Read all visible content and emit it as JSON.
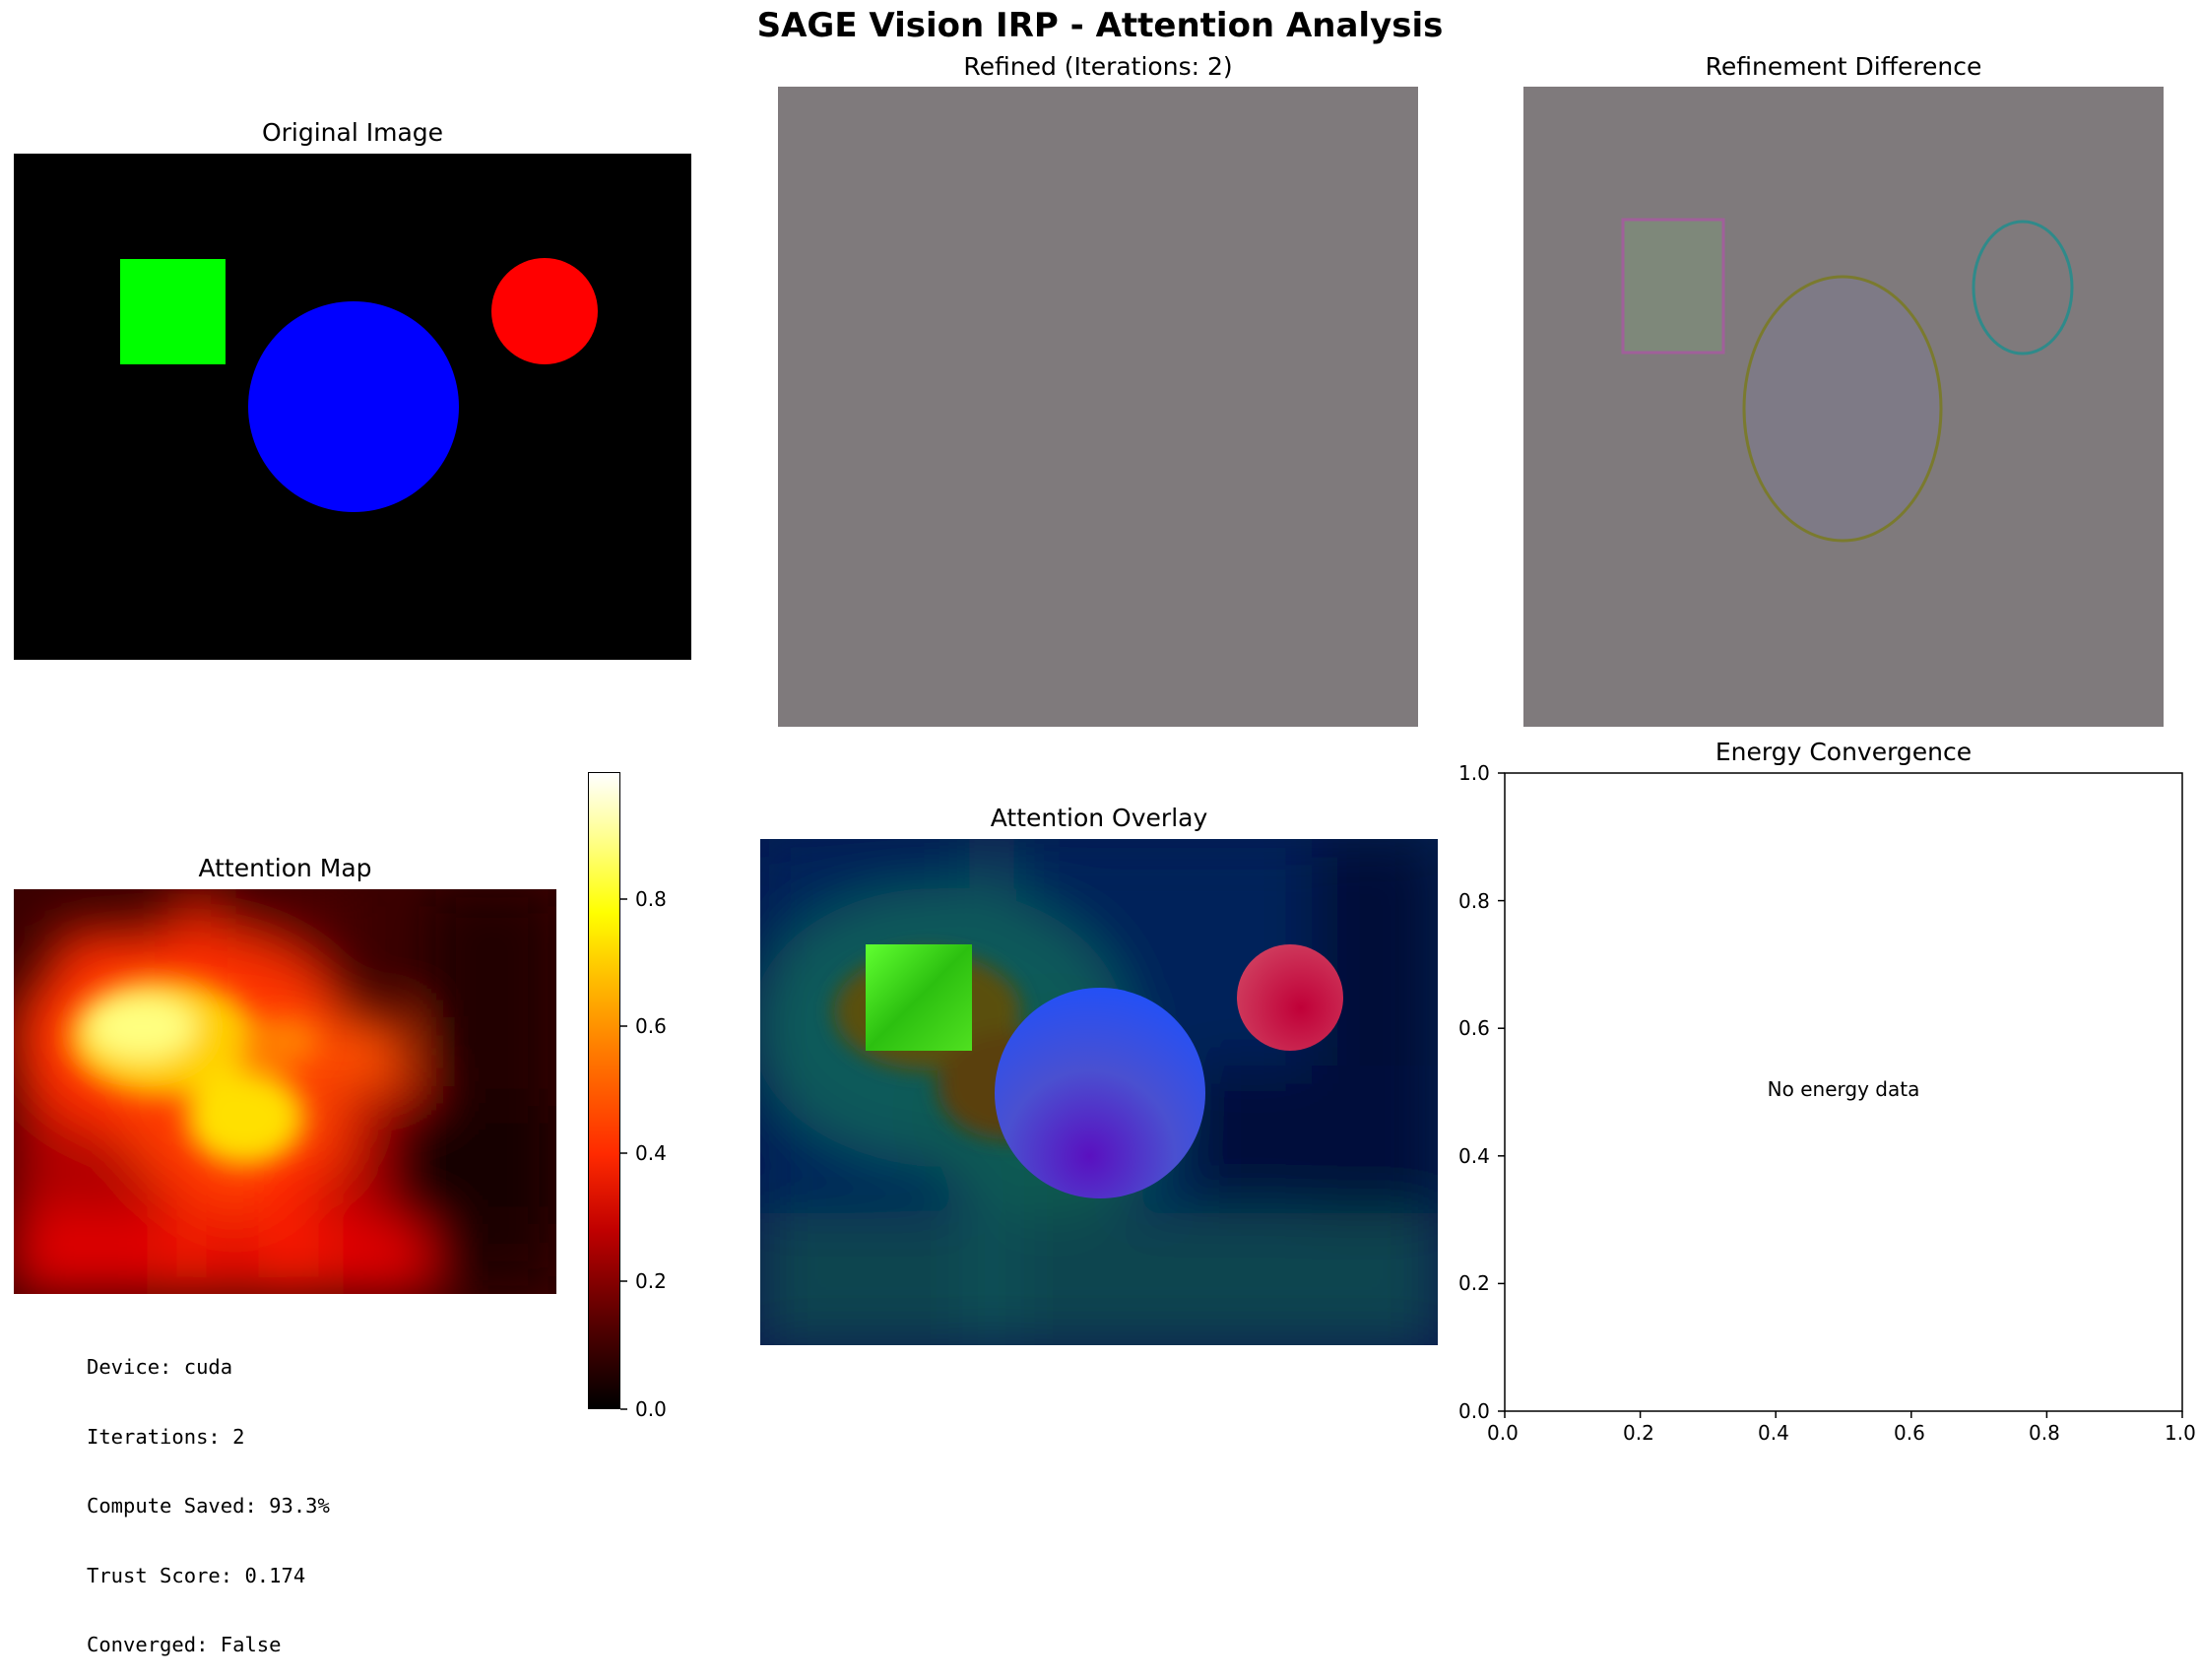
{
  "figure": {
    "title": "SAGE Vision IRP - Attention Analysis"
  },
  "panels": {
    "original": {
      "title": "Original Image"
    },
    "refined": {
      "title": "Refined (Iterations: 2)"
    },
    "difference": {
      "title": "Refinement Difference"
    },
    "attention_map": {
      "title": "Attention Map",
      "colorbar_ticks": [
        "0.0",
        "0.2",
        "0.4",
        "0.6",
        "0.8"
      ],
      "colormap": "hot"
    },
    "overlay": {
      "title": "Attention Overlay"
    },
    "energy": {
      "title": "Energy Convergence",
      "message": "No energy data",
      "x_ticks": [
        "0.0",
        "0.2",
        "0.4",
        "0.6",
        "0.8",
        "1.0"
      ],
      "y_ticks": [
        "0.0",
        "0.2",
        "0.4",
        "0.6",
        "0.8",
        "1.0"
      ]
    }
  },
  "info": {
    "device": "Device: cuda",
    "iterations": "Iterations: 2",
    "compute_saved": "Compute Saved: 93.3%",
    "trust_score": "Trust Score: 0.174",
    "converged": "Converged: False"
  },
  "colors": {
    "gray_fill": "#7f7a7c",
    "shape_green": "#00ff00",
    "shape_blue": "#0000ff",
    "shape_red": "#ff0000"
  }
}
